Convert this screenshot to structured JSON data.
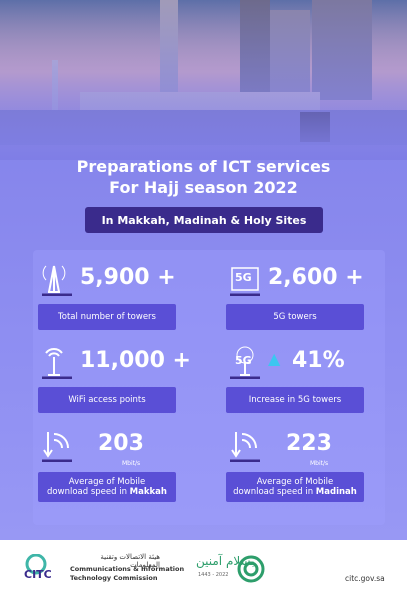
{
  "header": {
    "title_line1": "Preparations of ICT services",
    "title_line2": "For Hajj season 2022",
    "subtitle": "In Makkah, Madinah & Holy Sites"
  },
  "stats": [
    {
      "value": "5,900 +",
      "label": "Total number of towers"
    },
    {
      "icon_text": "5G",
      "value": "2,600 +",
      "label": "5G towers"
    },
    {
      "value": "11,000 +",
      "label": "WiFi access points"
    },
    {
      "icon_text": "5G",
      "value": "41%",
      "label": "Increase in  5G towers"
    },
    {
      "value": "203",
      "unit": "Mbit/s",
      "label": "Average of Mobile",
      "label2": "download speed in",
      "place": "Makkah"
    },
    {
      "value": "223",
      "unit": "Mbit/s",
      "label": "Average of Mobile",
      "label2": "download speed in",
      "place": "Madinah"
    }
  ],
  "footer": {
    "logo": "CITC",
    "org_arabic": "هيئة الاتصالات وتقنية المعلومات",
    "org_line1": "Communications & Information",
    "org_line2": "Technology Commission",
    "campaign": "بسلام آمنين",
    "campaign_years": "1443 - 2022",
    "url": "citc.gov.sa"
  }
}
